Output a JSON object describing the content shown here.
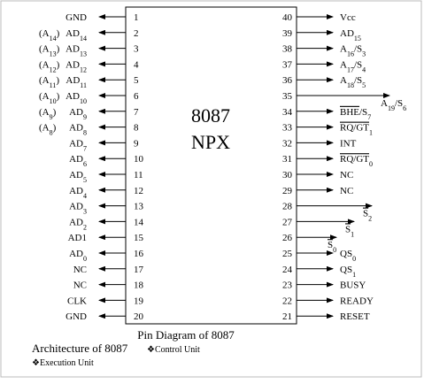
{
  "chip": {
    "name": "8087",
    "subtitle": "NPX"
  },
  "pins_left": [
    {
      "number": "1",
      "label": [
        {
          "text": "GND"
        }
      ]
    },
    {
      "number": "2",
      "alt": [
        {
          "text": "(A"
        },
        {
          "text": "14",
          "sub": true
        },
        {
          "text": ")"
        }
      ],
      "label": [
        {
          "text": "AD"
        },
        {
          "text": "14",
          "sub": true
        }
      ]
    },
    {
      "number": "3",
      "alt": [
        {
          "text": "(A"
        },
        {
          "text": "13",
          "sub": true
        },
        {
          "text": ")"
        }
      ],
      "label": [
        {
          "text": "AD"
        },
        {
          "text": "13",
          "sub": true
        }
      ]
    },
    {
      "number": "4",
      "alt": [
        {
          "text": "(A"
        },
        {
          "text": "12",
          "sub": true
        },
        {
          "text": ")"
        }
      ],
      "label": [
        {
          "text": "AD"
        },
        {
          "text": "12",
          "sub": true
        }
      ]
    },
    {
      "number": "5",
      "alt": [
        {
          "text": "(A"
        },
        {
          "text": "11",
          "sub": true
        },
        {
          "text": ")"
        }
      ],
      "label": [
        {
          "text": "AD"
        },
        {
          "text": "11",
          "sub": true
        }
      ]
    },
    {
      "number": "6",
      "alt": [
        {
          "text": "(A"
        },
        {
          "text": "10",
          "sub": true
        },
        {
          "text": ")"
        }
      ],
      "label": [
        {
          "text": "AD"
        },
        {
          "text": "10",
          "sub": true
        }
      ]
    },
    {
      "number": "7",
      "alt": [
        {
          "text": "(A"
        },
        {
          "text": "9",
          "sub": true
        },
        {
          "text": ")"
        }
      ],
      "label": [
        {
          "text": "AD"
        },
        {
          "text": "9",
          "sub": true
        }
      ]
    },
    {
      "number": "8",
      "alt": [
        {
          "text": "(A"
        },
        {
          "text": "8",
          "sub": true
        },
        {
          "text": ")"
        }
      ],
      "label": [
        {
          "text": "AD"
        },
        {
          "text": "8",
          "sub": true
        }
      ]
    },
    {
      "number": "9",
      "label": [
        {
          "text": "AD"
        },
        {
          "text": "7",
          "sub": true
        }
      ]
    },
    {
      "number": "10",
      "label": [
        {
          "text": "AD"
        },
        {
          "text": "6",
          "sub": true
        }
      ]
    },
    {
      "number": "11",
      "label": [
        {
          "text": "AD"
        },
        {
          "text": "5",
          "sub": true
        }
      ]
    },
    {
      "number": "12",
      "label": [
        {
          "text": "AD"
        },
        {
          "text": "4",
          "sub": true
        }
      ]
    },
    {
      "number": "13",
      "label": [
        {
          "text": "AD"
        },
        {
          "text": "3",
          "sub": true
        }
      ]
    },
    {
      "number": "14",
      "label": [
        {
          "text": "AD"
        },
        {
          "text": "2",
          "sub": true
        }
      ]
    },
    {
      "number": "15",
      "label": [
        {
          "text": "AD1"
        }
      ]
    },
    {
      "number": "16",
      "label": [
        {
          "text": "AD"
        },
        {
          "text": "0",
          "sub": true
        }
      ]
    },
    {
      "number": "17",
      "label": [
        {
          "text": "NC"
        }
      ]
    },
    {
      "number": "18",
      "label": [
        {
          "text": "NC"
        }
      ]
    },
    {
      "number": "19",
      "label": [
        {
          "text": "CLK"
        }
      ]
    },
    {
      "number": "20",
      "label": [
        {
          "text": "GND"
        }
      ]
    }
  ],
  "pins_right": [
    {
      "number": "40",
      "label": [
        {
          "text": "Vcc"
        }
      ]
    },
    {
      "number": "39",
      "label": [
        {
          "text": "AD"
        },
        {
          "text": "15",
          "sub": true
        }
      ]
    },
    {
      "number": "38",
      "label": [
        {
          "text": "A"
        },
        {
          "text": "16",
          "sub": true
        },
        {
          "text": "/S"
        },
        {
          "text": "3",
          "sub": true
        }
      ]
    },
    {
      "number": "37",
      "label": [
        {
          "text": "A"
        },
        {
          "text": "17",
          "sub": true
        },
        {
          "text": "/S"
        },
        {
          "text": "4",
          "sub": true
        }
      ]
    },
    {
      "number": "36",
      "label": [
        {
          "text": "A"
        },
        {
          "text": "18",
          "sub": true
        },
        {
          "text": "/S"
        },
        {
          "text": "5",
          "sub": true
        }
      ]
    },
    {
      "number": "35",
      "label": [
        {
          "text": "A"
        },
        {
          "text": "19",
          "sub": true
        },
        {
          "text": "/S"
        },
        {
          "text": "6",
          "sub": true
        }
      ]
    },
    {
      "number": "34",
      "label": [
        {
          "text": "BHE",
          "over": true
        },
        {
          "text": "/S"
        },
        {
          "text": "7",
          "sub": true
        }
      ]
    },
    {
      "number": "33",
      "label": [
        {
          "text": "RQ/GT",
          "over": true
        },
        {
          "text": "1",
          "sub": true
        }
      ]
    },
    {
      "number": "32",
      "label": [
        {
          "text": "INT"
        }
      ]
    },
    {
      "number": "31",
      "label": [
        {
          "text": "RQ/GT",
          "over": true
        },
        {
          "text": "0",
          "sub": true
        }
      ]
    },
    {
      "number": "30",
      "label": [
        {
          "text": "NC"
        }
      ]
    },
    {
      "number": "29",
      "label": [
        {
          "text": "NC"
        }
      ]
    },
    {
      "number": "28",
      "label": [
        {
          "text": "S",
          "over": true
        },
        {
          "text": "2",
          "sub": true
        }
      ]
    },
    {
      "number": "27",
      "label": [
        {
          "text": "S",
          "over": true
        },
        {
          "text": "1",
          "sub": true
        }
      ]
    },
    {
      "number": "26",
      "label": [
        {
          "text": "S",
          "over": true
        },
        {
          "text": "0",
          "sub": true
        }
      ]
    },
    {
      "number": "25",
      "label": [
        {
          "text": "QS"
        },
        {
          "text": "0",
          "sub": true
        }
      ]
    },
    {
      "number": "24",
      "label": [
        {
          "text": "QS"
        },
        {
          "text": "1",
          "sub": true
        }
      ]
    },
    {
      "number": "23",
      "label": [
        {
          "text": "BUSY"
        }
      ]
    },
    {
      "number": "22",
      "label": [
        {
          "text": "READY"
        }
      ]
    },
    {
      "number": "21",
      "label": [
        {
          "text": "RESET"
        }
      ]
    }
  ],
  "caption": "Pin Diagram of 8087",
  "notes": {
    "heading": "Architecture of 8087",
    "items": [
      "❖Control Unit",
      "❖Execution Unit"
    ]
  }
}
